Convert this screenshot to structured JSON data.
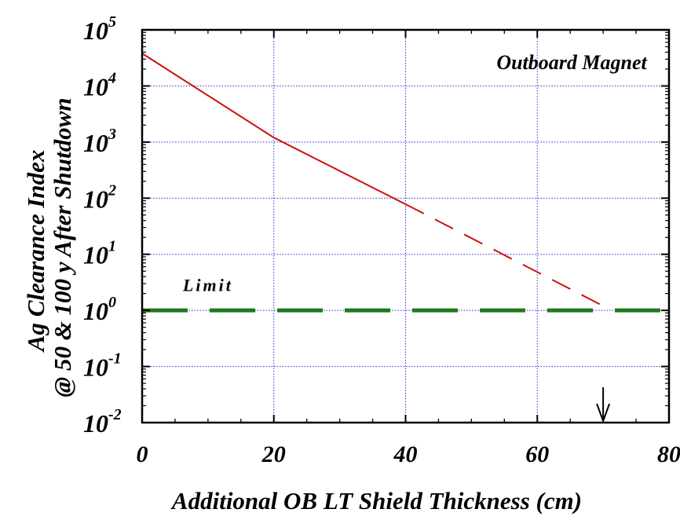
{
  "chart_data": {
    "type": "line",
    "xlabel": "Additional OB LT Shield Thickness (cm)",
    "ylabel_lines": [
      "Ag Clearance Index",
      "@ 50 & 100 y After Shutdown"
    ],
    "xlim": [
      0,
      80
    ],
    "ylim": [
      0.01,
      100000
    ],
    "y_scale": "log",
    "x_ticks": [
      0,
      20,
      40,
      60,
      80
    ],
    "y_ticks": [
      {
        "base": "10",
        "exp": "-2",
        "value": 0.01
      },
      {
        "base": "10",
        "exp": "-1",
        "value": 0.1
      },
      {
        "base": "10",
        "exp": "0",
        "value": 1
      },
      {
        "base": "10",
        "exp": "1",
        "value": 10
      },
      {
        "base": "10",
        "exp": "2",
        "value": 100
      },
      {
        "base": "10",
        "exp": "3",
        "value": 1000
      },
      {
        "base": "10",
        "exp": "4",
        "value": 10000
      },
      {
        "base": "10",
        "exp": "5",
        "value": 100000
      }
    ],
    "grid": true,
    "series": [
      {
        "color": "#cc1111",
        "segments": [
          {
            "style": "solid",
            "points": [
              [
                0,
                38000
              ],
              [
                20,
                1200
              ],
              [
                40,
                78
              ]
            ]
          },
          {
            "style": "dashed",
            "points": [
              [
                40,
                78
              ],
              [
                70,
                1.2
              ]
            ]
          }
        ]
      },
      {
        "color": "#1f7a1f",
        "segments": [
          {
            "style": "dashed",
            "points": [
              [
                0,
                1
              ],
              [
                80,
                1
              ]
            ]
          }
        ]
      }
    ],
    "annotations": [
      {
        "text": "Outboard Magnet",
        "x": 55,
        "y": 20000
      },
      {
        "text": "Limit",
        "x": 10,
        "y": 2.2
      }
    ],
    "marker_arrow": {
      "x": 70,
      "y_from": 0.035,
      "y_to": 0.01
    }
  }
}
